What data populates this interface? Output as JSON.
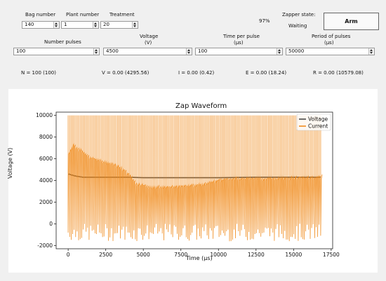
{
  "controls": {
    "bag_number": {
      "label": "Bag number",
      "value": "140"
    },
    "plant_number": {
      "label": "Plant number",
      "value": "1"
    },
    "treatment": {
      "label": "Treatment",
      "value": "20"
    },
    "progress_text": "97%",
    "zapper_state_label": "Zapper state:",
    "zapper_state_value": "Waiting",
    "arm_button": "Arm"
  },
  "params": {
    "number_pulses": {
      "label": "Number pulses",
      "value": "100"
    },
    "voltage": {
      "label_line1": "Voltage",
      "label_line2": "(V)",
      "value": "4500"
    },
    "time_per_pulse": {
      "label_line1": "Time per pulse",
      "label_line2": "(μs)",
      "value": "100"
    },
    "period_of_pulses": {
      "label_line1": "Period of pulses",
      "label_line2": "(μs)",
      "value": "50000"
    }
  },
  "readouts": {
    "n": "N = 100 (100)",
    "v": "V = 0.00 (4295.56)",
    "i": "I = 0.00 (0.42)",
    "e": "E = 0.00 (18.24)",
    "r": "R = 0.00 (10579.08)"
  },
  "chart_data": {
    "type": "line",
    "title": "Zap Waveform",
    "xlabel": "Time (μs)",
    "ylabel": "Voltage (V)",
    "xlim": [
      -800,
      17600
    ],
    "ylim": [
      -2300,
      10300
    ],
    "xticks": [
      0,
      2500,
      5000,
      7500,
      10000,
      12500,
      15000,
      17500
    ],
    "yticks": [
      -2000,
      0,
      2000,
      4000,
      6000,
      8000,
      10000
    ],
    "grid": false,
    "legend_position": "top-right",
    "series": [
      {
        "name": "Voltage",
        "color": "#4a4a4a",
        "values_x": [
          0,
          500,
          1000,
          2000,
          3000,
          4000,
          5000,
          7500,
          10000,
          12500,
          15000,
          16800
        ],
        "values_y": [
          4600,
          4400,
          4300,
          4300,
          4300,
          4300,
          4250,
          4250,
          4250,
          4300,
          4300,
          4300
        ]
      },
      {
        "name": "Current",
        "color": "#f08c1e",
        "pulse_count": 170,
        "x_range": [
          0,
          16800
        ],
        "peak": 10000,
        "trough_range": [
          -1600,
          0
        ],
        "envelope_x": [
          0,
          300,
          800,
          1500,
          2500,
          3500,
          4000,
          4500,
          5500,
          7500,
          9000,
          10000,
          11500,
          13000,
          15000,
          16800
        ],
        "envelope_y": [
          6600,
          7300,
          6800,
          6100,
          5700,
          5200,
          4600,
          3700,
          3400,
          3500,
          3700,
          4100,
          4250,
          4200,
          4300,
          4350
        ]
      }
    ]
  }
}
